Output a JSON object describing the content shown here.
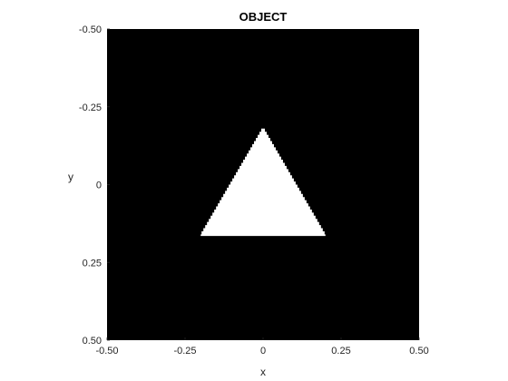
{
  "chart_data": {
    "type": "heatmap",
    "title": "OBJECT",
    "xlabel": "x",
    "ylabel": "y",
    "xlim": [
      -0.5,
      0.5
    ],
    "ylim": [
      -0.5,
      0.5
    ],
    "y_direction": "reversed",
    "x_ticks": [
      -0.5,
      -0.25,
      0,
      0.25,
      0.5
    ],
    "x_tick_labels": [
      "-0.50",
      "-0.25",
      "0",
      "0.25",
      "0.50"
    ],
    "y_ticks": [
      -0.5,
      -0.25,
      0,
      0.25,
      0.5
    ],
    "y_tick_labels": [
      "-0.50",
      "-0.25",
      "0",
      "0.25",
      "0.50"
    ],
    "grid": false,
    "background_color": "#000000",
    "object_color": "#ffffff",
    "object_shape": "triangle",
    "object_vertices": [
      [
        0.0,
        -0.18
      ],
      [
        -0.2,
        0.165
      ],
      [
        0.2,
        0.165
      ]
    ]
  }
}
